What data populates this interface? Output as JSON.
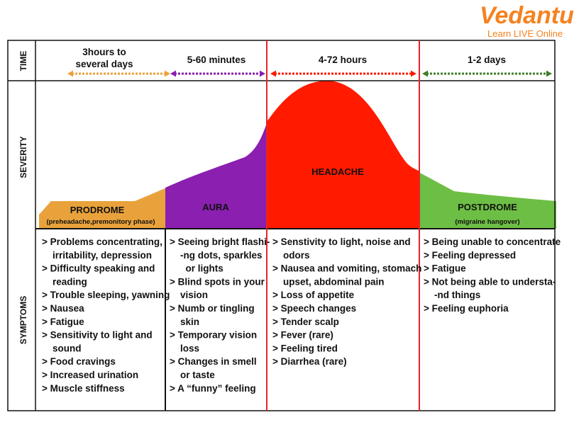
{
  "logo": {
    "name": "Vedantu",
    "tagline": "Learn LIVE Online",
    "color": "#f58220"
  },
  "rows": {
    "time": "TIME",
    "severity": "SEVERITY",
    "symptoms": "SYMPTOMS"
  },
  "phases": [
    {
      "id": "prodrome",
      "title": "PRODROME",
      "subtitle": "(preheadache,premonitory phase)",
      "color": "#e9a23b",
      "arrow_color": "#e9a23b",
      "time_lines": [
        "3hours to",
        "several days"
      ],
      "symptoms": [
        [
          "> Problems concentrating,",
          "  irritability, depression"
        ],
        [
          "> Difficulty speaking and",
          "  reading"
        ],
        [
          "> Trouble sleeping, yawning"
        ],
        [
          "> Nausea"
        ],
        [
          "> Fatigue"
        ],
        [
          "> Sensitivity to light and",
          "  sound"
        ],
        [
          "> Food cravings"
        ],
        [
          "> Increased urination"
        ],
        [
          "> Muscle stiffness"
        ]
      ]
    },
    {
      "id": "aura",
      "title": "AURA",
      "subtitle": "",
      "color": "#8a1fb0",
      "arrow_color": "#8a1fb0",
      "time_lines": [
        "5-60 minutes"
      ],
      "symptoms": [
        [
          "> Seeing bright flashi-",
          "  -ng dots, sparkles",
          "   or lights"
        ],
        [
          "> Blind spots in your",
          "  vision"
        ],
        [
          "> Numb or tingling",
          "  skin"
        ],
        [
          "> Temporary vision",
          "  loss"
        ],
        [
          "> Changes in smell",
          "  or taste"
        ],
        [
          "> A “funny” feeling"
        ]
      ]
    },
    {
      "id": "headache",
      "title": "HEADACHE",
      "subtitle": "",
      "color": "#ff1a00",
      "arrow_color": "#ff1a00",
      "time_lines": [
        "4-72 hours"
      ],
      "symptoms": [
        [
          "> Senstivity to light, noise and",
          "  odors"
        ],
        [
          "> Nausea and vomiting, stomach",
          "  upset, abdominal pain"
        ],
        [
          "> Loss of appetite"
        ],
        [
          "> Speech changes"
        ],
        [
          "> Tender scalp"
        ],
        [
          "> Fever (rare)"
        ],
        [
          "> Feeling tired"
        ],
        [
          "> Diarrhea (rare)"
        ]
      ]
    },
    {
      "id": "postdrome",
      "title": "POSTDROME",
      "subtitle": "(migraine hangover)",
      "color": "#6dbe45",
      "arrow_color": "#3f7f2a",
      "time_lines": [
        "1-2 days"
      ],
      "symptoms": [
        [
          "> Being unable to concentrate"
        ],
        [
          "> Feeling depressed"
        ],
        [
          "> Fatigue"
        ],
        [
          "> Not being able to understa-",
          "  -nd things"
        ],
        [
          "> Feeling euphoria"
        ]
      ]
    }
  ],
  "divider_color": "#e8232a"
}
